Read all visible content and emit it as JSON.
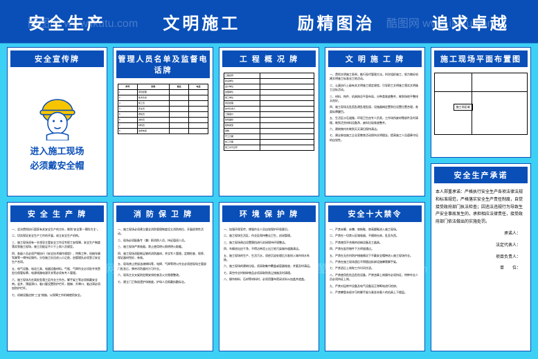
{
  "header": {
    "slogan1": "安全生产",
    "slogan2": "文明施工",
    "slogan3": "励精图治",
    "slogan4": "追求卓越"
  },
  "panels": {
    "p1": {
      "title": "安全宣传牌",
      "big1": "进入施工现场",
      "big2": "必须戴安全帽"
    },
    "p2": {
      "title": "管理人员名单及监督电话牌",
      "table_head": [
        "序号",
        "职务",
        "姓名",
        "电话"
      ],
      "rows": [
        [
          "1",
          "项目经理",
          "",
          ""
        ],
        [
          "2",
          "技术负责",
          "",
          ""
        ],
        [
          "3",
          "施工员",
          "",
          ""
        ],
        [
          "4",
          "安全员",
          "",
          ""
        ],
        [
          "5",
          "质检员",
          "",
          ""
        ],
        [
          "6",
          "资料员",
          "",
          ""
        ],
        [
          "7",
          "材料员",
          "",
          ""
        ],
        [
          "8",
          "监督电话",
          "",
          ""
        ]
      ]
    },
    "p3": {
      "title": "工 程 概 况 牌",
      "fields": [
        "工程名称",
        "建设单位",
        "设计单位",
        "监理单位",
        "施工单位",
        "项目经理",
        "技术负责人",
        "工程造价",
        "建筑面积",
        "结构类型",
        "层数",
        "开工日期",
        "竣工日期",
        "施工许可证号"
      ]
    },
    "p4": {
      "title": "文 明 施 工 牌",
      "items": [
        "一、贯彻文明施工条例，推行现代管理方法，科学组织施工，努力做好创建文明施工标准化工地活动。",
        "二、认真执行上级有关文明施工规定规程，引导职工文明施工落实文明施工达标活动。",
        "三、材料、构件、机具按总平面布局，分种类堆放整齐，做到场地平整排水良好。",
        "四、施工现场无乱搭乱建乱埋乱接，设施器械定置到位设置位置合理，各类标牌醒目。",
        "五、生活区沙石道路，环境卫生由专人负责，工作场所废材零部件及时清理，做到活完材料设备净，废料垃圾堆放整齐。",
        "六、建筑物内外做到天天清扫保持清洁。",
        "七、建议参加施工企业宣教育活动保持文明理念，提高施工人员遵章守纪的自觉性。"
      ]
    },
    "p5a": {
      "title": "施工现场平面布置图",
      "map_label": "施工场区域"
    },
    "p5b": {
      "title": "安全生产承诺",
      "body": "本人郑重承诺：严格执行安全生产各项法律法规和标准规范，严格落实安全生产责任制度，自觉接受政府部门执法检查；因违法违规行为导致生产安全事故发生的，承担相应法律责任，接受政府部门依法做出的实施处罚。",
      "sigs": [
        "承诺人：",
        "法定代表人：",
        "项目负责人：",
        "单　　位："
      ]
    },
    "p6": {
      "title": "安 全 生 产 牌",
      "items": [
        "一、坚决贯彻执行国家有关安全生产的方针，做到\"安全第一预防为主\"。",
        "二、切实保证安全生产工作的开展，成立安全生产机构。",
        "三、施工现场须有一名领导主管安全工作设专职工安保障，安全生产制度落实到施工现场，施工员配足不少于上岗人员规定。",
        "四、各级人员必须严格执行《安全技术操作规程》，特殊工种，机械车辆驾驶等一律持证操作。分包施工队伍进入口之前，由管理队必须签订安全生产合同。",
        "五、电气设备、电动工具、电器设备材料，气瓶、气焊作业必须配齐装置定位保管标牌，电源线路电源开关等必须有专人管理。",
        "六、施工现场凡在高处坠落工区作业工作台，脚手架工等必须佩戴安全带。竖井、预留洞口、临口要设置防护栏杆，楼梯、升降口、临边洞必须加防护栏杆。",
        "七、机械设备应按\"三宝\"措施，以保障工作机械使用安全。"
      ]
    },
    "p7": {
      "title": "消 防 保 卫 牌",
      "items": [
        "一、施工现场必须建立健全消防管理制度设立消防岗位，开展经常性活动。",
        "二、现场必须配备专（兼）职消防人员，持证值班人员。",
        "三、施工现场严禁吸烟，禁止使用明火照明明火取暖。",
        "四、施工现场须配制足够的消防器材，并设专人管理，定期检查、保养、保证器材完好，有效。",
        "五、现场禁止焚烧油漆稀料等，电焊、气焊等明火作业必须经现场主管部门批准后，携带消防器材方可作业。",
        "六、现场主交叉架则定期安排检查及火灾隐患整改。",
        "七、建立门卫和巡逻护场制度，护场人员佩戴执勤标志。"
      ]
    },
    "p8": {
      "title": "环 境 保 护 牌",
      "items": [
        "一、加强环保宣传，增强作业人员自觉保护环境意识。",
        "二、施工现场生活区，作业区保持整洁卫生，封闭管理。",
        "三、施工现场周边设置围挡进行封闭保持环境整洁。",
        "四、车辆进出应干净，不得沾带泥土出工地污染城市道路清洁。",
        "五、施工现场的生产、生活污水，须经沉淀处理后方准排入城市排水系统。",
        "六、施工现场的建筑垃圾，须采取集中覆盖或容器堆放，并要及时清运。",
        "七、高空作业时粉碎物品必须采取防扬尘措施及时清理。",
        "八、操作粉料、石材等材料时，必须用篷布密闭式料斗加盖并遮盖。"
      ]
    },
    "p9": {
      "title": "安全十大禁令",
      "items": [
        "一、严禁赤脚、赤膊、穿拖鞋、穿高跟鞋进入施工现场。",
        "二、严禁在一切禁火区域吸烟，不随地吐痰，乱丢东西。",
        "三、严禁使用不合格的机械设备及工器具。",
        "四、严禁在起吊物件下方停留通过。",
        "五、严禁在无任何防护措施情况下不戴安全帽带进入施工现场作业。",
        "六、严禁在施工现场酒后不得擅自拆卸设施攀爬脚手架。",
        "七、严禁酒后上岗和工作时间饮酒。",
        "八、严禁使用危险品危险设备，严禁违章上岗操作必须持证，特种作业人员必须持证上岗。",
        "九、严禁对运转中设备及电气设备没正常断电进行检修。",
        "十、严禁攀登未经许可的脚手架与乘坐非载人的机具上下楼层。"
      ]
    }
  },
  "watermark": "酷图网 www.ikutu.com"
}
